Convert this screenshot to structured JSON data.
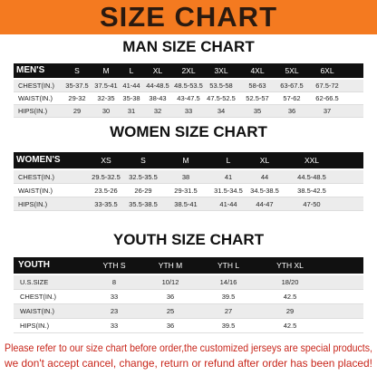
{
  "header": {
    "title": "SIZE CHART"
  },
  "men": {
    "title": "MAN SIZE CHART",
    "header": [
      "MEN'S",
      "S",
      "M",
      "L",
      "XL",
      "2XL",
      "3XL",
      "4XL",
      "5XL",
      "6XL"
    ],
    "rows": [
      [
        "CHEST(IN.)",
        "35-37.5",
        "37.5-41",
        "41-44",
        "44-48.5",
        "48.5-53.5",
        "53.5-58",
        "58-63",
        "63-67.5",
        "67.5-72"
      ],
      [
        "WAIST(IN.)",
        "29-32",
        "32-35",
        "35-38",
        "38-43",
        "43-47.5",
        "47.5-52.5",
        "52.5-57",
        "57-62",
        "62-66.5"
      ],
      [
        "HIPS(IN.)",
        "29",
        "30",
        "31",
        "32",
        "33",
        "34",
        "35",
        "36",
        "37"
      ]
    ]
  },
  "women": {
    "title": "WOMEN SIZE CHART",
    "header": [
      "WOMEN'S",
      "XS",
      "S",
      "M",
      "L",
      "XL",
      "XXL"
    ],
    "rows": [
      [
        "CHEST(IN.)",
        "29.5-32.5",
        "32.5-35.5",
        "38",
        "41",
        "44",
        "44.5-48.5"
      ],
      [
        "WAIST(IN.)",
        "23.5-26",
        "26-29",
        "29-31.5",
        "31.5-34.5",
        "34.5-38.5",
        "38.5-42.5"
      ],
      [
        "HIPS(IN.)",
        "33-35.5",
        "35.5-38.5",
        "38.5-41",
        "41-44",
        "44-47",
        "47-50"
      ]
    ]
  },
  "youth": {
    "title": "YOUTH SIZE CHART",
    "header": [
      "YOUTH",
      "YTH S",
      "YTH M",
      "YTH L",
      "YTH XL"
    ],
    "rows": [
      [
        "U.S.SIZE",
        "8",
        "10/12",
        "14/16",
        "18/20"
      ],
      [
        "CHEST(IN.)",
        "33",
        "36",
        "39.5",
        "42.5"
      ],
      [
        "WAIST(IN.)",
        "23",
        "25",
        "27",
        "29"
      ],
      [
        "HIPS(IN.)",
        "33",
        "36",
        "39.5",
        "42.5"
      ]
    ]
  },
  "footer": {
    "lines": [
      "Please refer to our size chart before order,the customized jerseys are special products,",
      "we don't accept cancel, change, return or refund after order has been placed!"
    ]
  }
}
